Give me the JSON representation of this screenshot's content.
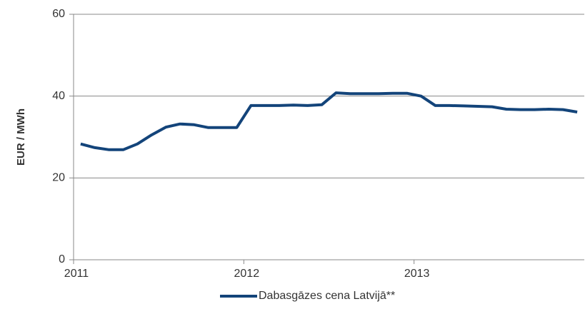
{
  "chart_data": {
    "type": "line",
    "y_label": "EUR / MWh",
    "categories": [
      "2011",
      null,
      null,
      null,
      null,
      null,
      null,
      null,
      null,
      null,
      null,
      null,
      "2012",
      null,
      null,
      null,
      null,
      null,
      null,
      null,
      null,
      null,
      null,
      null,
      "2013",
      null,
      null,
      null,
      null,
      null,
      null,
      null,
      null,
      null,
      null,
      null
    ],
    "series": [
      {
        "name": "Dabasgāzes cena Latvijā**",
        "color": "#13447a",
        "values": [
          28.3,
          27.4,
          26.9,
          26.9,
          28.3,
          30.5,
          32.4,
          33.2,
          33.0,
          32.3,
          32.3,
          32.3,
          37.7,
          37.7,
          37.7,
          37.8,
          37.7,
          37.9,
          40.8,
          40.6,
          40.6,
          40.6,
          40.7,
          40.7,
          40.0,
          37.7,
          37.7,
          37.6,
          37.5,
          37.4,
          36.8,
          36.7,
          36.7,
          36.8,
          36.7,
          36.1
        ]
      }
    ],
    "ylim": [
      0,
      60
    ],
    "yticks": [
      0,
      20,
      40,
      60
    ],
    "grid": true,
    "legend": "bottom"
  }
}
